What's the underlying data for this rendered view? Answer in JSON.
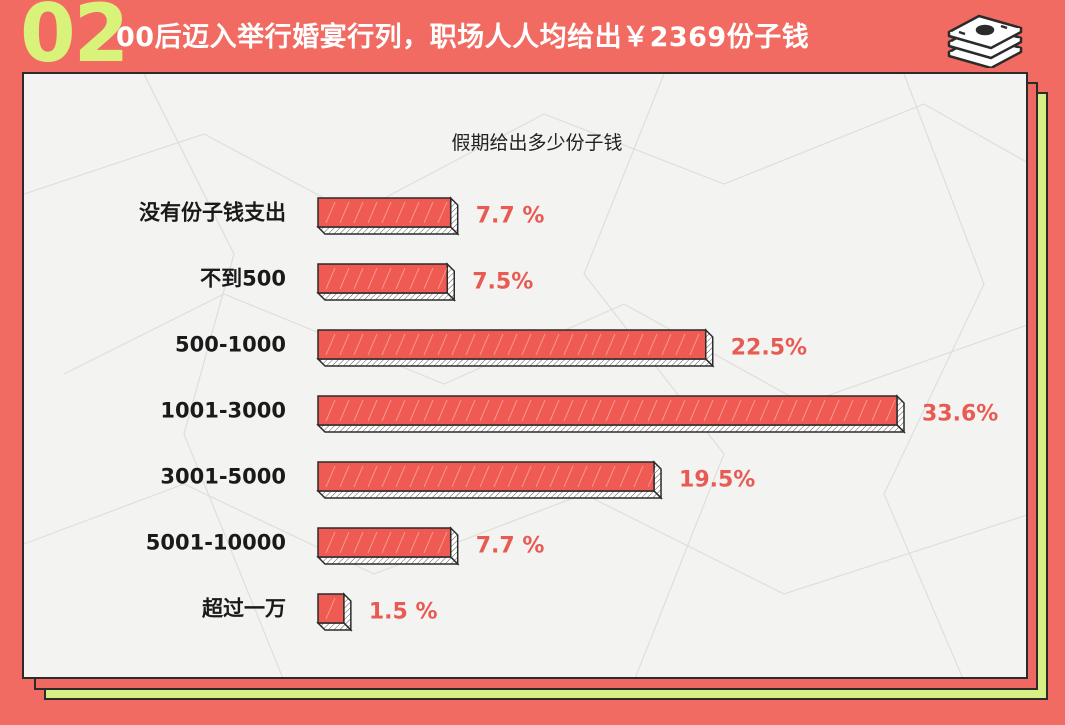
{
  "header": {
    "number": "02",
    "headline": "00后迈入举行婚宴行列，职场人人均给出￥2369份子钱"
  },
  "icons": {
    "money": "money-stack-icon"
  },
  "colors": {
    "background": "#f26b63",
    "accent_green": "#d8ef83",
    "bar": "#ef5b52",
    "value_text": "#e85a52",
    "card": "#f3f3f1"
  },
  "chart_data": {
    "type": "bar",
    "orientation": "horizontal",
    "title": "假期给出多少份子钱",
    "categories": [
      "没有份子钱支出",
      "不到500",
      "500-1000",
      "1001-3000",
      "3001-5000",
      "5001-10000",
      "超过一万"
    ],
    "values": [
      7.7,
      7.5,
      22.5,
      33.6,
      19.5,
      7.7,
      1.5
    ],
    "value_labels": [
      "7.7 %",
      "7.5%",
      "22.5%",
      "33.6%",
      "19.5%",
      "7.7 %",
      "1.5 %"
    ],
    "unit": "%",
    "xlim": [
      0,
      33.6
    ],
    "grid": false,
    "legend": "none"
  }
}
